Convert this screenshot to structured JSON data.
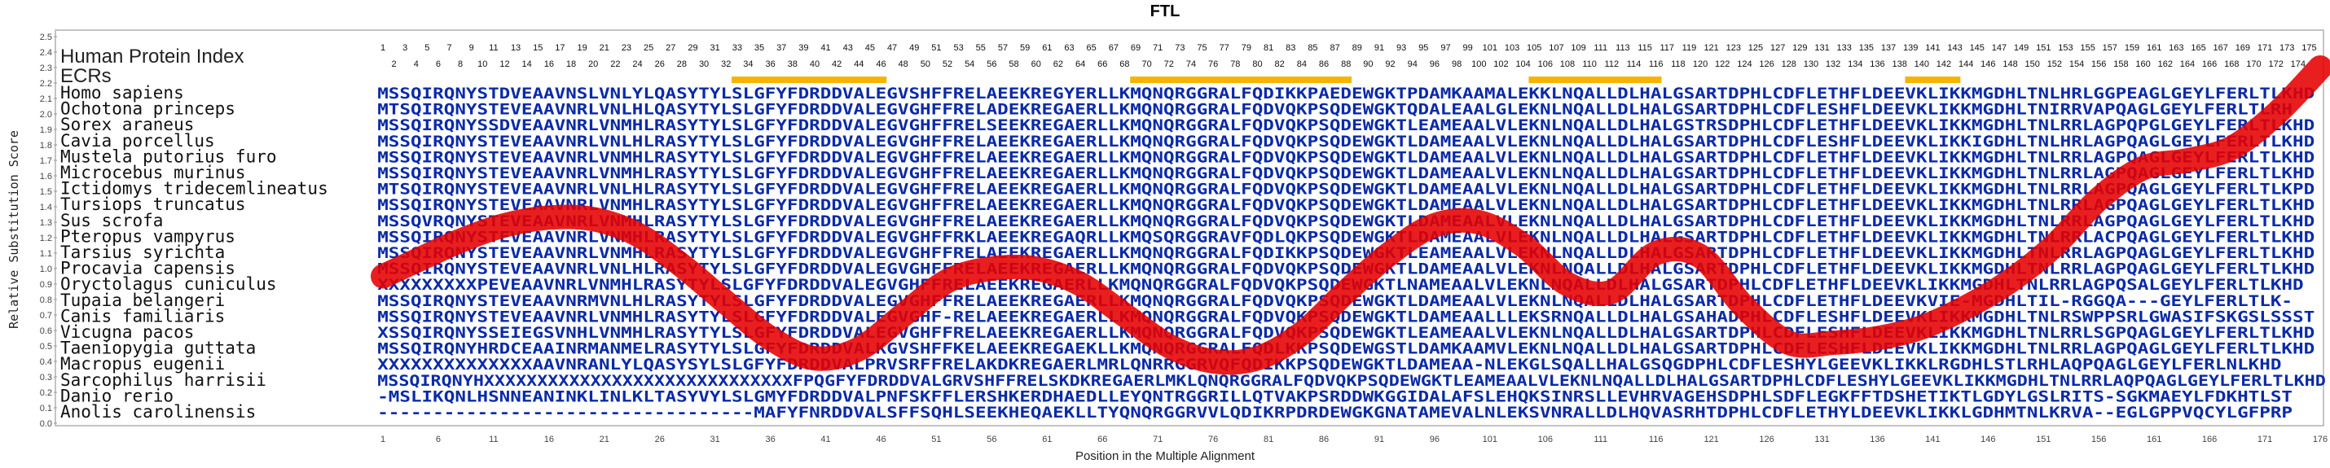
{
  "chart_data": {
    "type": "line",
    "title": "FTL",
    "xlabel": "Position in the Multiple Alignment",
    "ylabel": "Relative Substitution Score",
    "xlim": [
      1,
      176
    ],
    "ylim": [
      0.0,
      2.5
    ],
    "yticks": [
      "0.0",
      "0.1",
      "0.2",
      "0.3",
      "0.4",
      "0.5",
      "0.6",
      "0.7",
      "0.8",
      "0.9",
      "1.0",
      "1.1",
      "1.2",
      "1.3",
      "1.4",
      "1.5",
      "1.6",
      "1.7",
      "1.8",
      "1.9",
      "2.0",
      "2.1",
      "2.2",
      "2.3",
      "2.4",
      "2.5"
    ],
    "xticks": [
      1,
      6,
      11,
      16,
      21,
      26,
      31,
      36,
      41,
      46,
      51,
      56,
      61,
      66,
      71,
      76,
      81,
      86,
      91,
      96,
      101,
      106,
      111,
      116,
      121,
      126,
      131,
      136,
      141,
      146,
      151,
      156,
      161,
      166,
      171,
      176
    ],
    "human_protein_index_label": "Human Protein Index",
    "ecrs_label": "ECRs",
    "index_top": [
      1,
      3,
      5,
      7,
      9,
      11,
      13,
      15,
      17,
      19,
      21,
      23,
      25,
      27,
      29,
      31,
      33,
      35,
      37,
      39,
      41,
      43,
      45,
      47,
      49,
      51,
      53,
      55,
      57,
      59,
      61,
      63,
      65,
      67,
      69,
      71,
      73,
      75,
      77,
      79,
      81,
      83,
      85,
      87,
      89,
      91,
      93,
      95,
      97,
      99,
      101,
      103,
      105,
      107,
      109,
      111,
      113,
      115,
      117,
      119,
      121,
      123,
      125,
      127,
      129,
      131,
      133,
      135,
      137,
      139,
      141,
      143,
      145,
      147,
      149,
      151,
      153,
      155,
      157,
      159,
      161,
      163,
      165,
      167,
      169,
      171,
      173,
      175
    ],
    "index_bottom": [
      2,
      4,
      6,
      8,
      10,
      12,
      14,
      16,
      18,
      20,
      22,
      24,
      26,
      28,
      30,
      32,
      34,
      36,
      38,
      40,
      42,
      44,
      46,
      48,
      50,
      52,
      54,
      56,
      58,
      60,
      62,
      64,
      66,
      68,
      70,
      72,
      74,
      76,
      78,
      80,
      82,
      84,
      86,
      88,
      90,
      92,
      94,
      96,
      98,
      100,
      102,
      104,
      106,
      108,
      110,
      112,
      114,
      116,
      118,
      120,
      122,
      124,
      126,
      128,
      130,
      132,
      134,
      136,
      138,
      140,
      142,
      144,
      146,
      148,
      150,
      152,
      154,
      156,
      158,
      160,
      162,
      164,
      166,
      168,
      170,
      172,
      174
    ],
    "ecr_ranges": [
      [
        33,
        46
      ],
      [
        69,
        88
      ],
      [
        105,
        116
      ],
      [
        139,
        143
      ]
    ],
    "ecr_color": "#f6b400",
    "series": [
      {
        "x": [
          1,
          4,
          8,
          12,
          16,
          20,
          24,
          28,
          32,
          36,
          40,
          44,
          48,
          52,
          56,
          60,
          64,
          68,
          72,
          76,
          80,
          84,
          88,
          92,
          96,
          100,
          104,
          108,
          112,
          116,
          120,
          124,
          128,
          132,
          136,
          140,
          144,
          148,
          152,
          156,
          160,
          164,
          168,
          172,
          176
        ],
        "values": [
          0.95,
          1.05,
          1.18,
          1.28,
          1.33,
          1.32,
          1.22,
          1.02,
          0.78,
          0.55,
          0.42,
          0.48,
          0.7,
          0.92,
          1.0,
          1.0,
          0.9,
          0.7,
          0.5,
          0.4,
          0.42,
          0.58,
          0.85,
          1.1,
          1.28,
          1.3,
          1.15,
          0.9,
          0.85,
          1.1,
          1.08,
          0.75,
          0.52,
          0.52,
          0.55,
          0.62,
          0.75,
          0.92,
          1.15,
          1.45,
          1.65,
          1.7,
          1.78,
          2.0,
          2.3
        ],
        "color": "#e60000"
      }
    ],
    "species": [
      "Homo sapiens",
      "Ochotona princeps",
      "Sorex araneus",
      "Cavia porcellus",
      "Mustela putorius furo",
      "Microcebus murinus",
      "Ictidomys tridecemlineatus",
      "Tursiops truncatus",
      "Sus scrofa",
      "Pteropus vampyrus",
      "Tarsius syrichta",
      "Procavia capensis",
      "Oryctolagus cuniculus",
      "Tupaia belangeri",
      "Canis familiaris",
      "Vicugna pacos",
      "Taeniopygia guttata",
      "Macropus eugenii",
      "Sarcophilus harrisii",
      "Danio rerio",
      "Anolis carolinensis"
    ],
    "sequences": [
      "MSSQIRQNYSTDVEAAVNSLVNLYLQASYTYLSLGFYFDRDDVALEGVSHFFRELAEEKREGYERLLKMQNQRGGRALFQDIKKPAEDEWGKTPDAMKAAMALEKKLNQALLDLHALGSARTDPHLCDFLETHFLDEEVKLIKKMGDHLTNLHRLGGPEAGLGEYLFERLTLKHD",
      "MTSQIRQNYSTEVEAAVNRLVNLHLQASYTYLSLGFYFDRDDVALEGVGHFFRELADEKREGAERLLKMQNQRGGRALFQDVQKPSQDEWGKTQDALEAALGLEKNLNQALLDLHALGSARTDPHLCDFLESHFLDEEVKLIKKMGDHLTNIRRVAPQAGLGEYLFERLTLRH",
      "MSSQIRQNYSSDVEAAVNRLVNMHLRASYTYLSLGFYFDRDDVALEGVGHFFRELSEEKREGAERLLKMQNQRGGRALFQDVQKPSQDEWGKTLEAMEAALVLEKNLNQALLDLHALGSTRSDPHLCDFLETHFLDEEVKLIKKMGDHLTNLRRLAGPQPGLGEYLFERLTLKHD",
      "MSSQIRQNYSTEVEAAVNRLVNLHLRASYTYLSLGFYFDRDDVALEGVGHFFRELAEEKREGAERLLKMQNQRGGRALFQDVQKPSQDEWGKTLDAMEAALVLEKNLNQALLDLHALGSARTDPHLCDFLESHFLDEEVKLIKKIGDHLTNLHRLAGPQAGLGEYLFERLTLKHD",
      "MSSQIRQNYSTEVEAAVNRLVNMHLRASYTYLSLGFYFDRDDVALEGVGHFFRELAEEKREGAERLLKMQNQRGGRALFQDVQKPSQDEWGKTLDAMEAALVLEKNLNQALLDLHALGSARTDPHLCDFLETHFLDEEVKLIKKMGDHLTNLRRLAGPQAGLGEYLFERLTLKHD",
      "MSSQIRQNYSTEVEAAVNRLVNMHLRASYTYLSLGFYFDRDDVALEGVGHFFRELAEEKREGAERLLKMQNQRGGRALFQDVQKPSQDEWGKTLDAMEAALVLEKNLNQALLDLHALGSARTDPHLCDFLETHFLDEEVKLIKKMGDHLTNLRRLAGPQAGLGEYLFERLTLKHD",
      "MTSQIRQNYSTEVEAAVNRLVNLHLRASYTYLSLGFYFDRDDVALEGVGHFFRELAEEKREGAERLLKMQNQRGGRALFQDVQKPSQDEWGKTLDAMEAALVLEKNLNQALLDLHALGSARTDPHLCDFLETHFLDEEVKLIKKMGDHLTNLRRLAGPQAGLGEYLFERLTLKPD",
      "MSSQIRQNYSTEVEAAVNRLVNMHLRASYTYLSLGFYFDRDDVALEGVGHFFRELAEEKREGAERLLKMQNQRGGRALFQDVQKPSQDEWGKTLDAMEAALVLEKNLNQALLDLHALGSARTDPHLCDFLETHFLDEEVKLIKKMGDHLTNLRRLAGPQAGLGEYLFERLTLKHD",
      "MSSQVRQNYSTEVEAAVNRLVNMHLRASYTYLSLGFYFDRDDVALEGVGHFFRELAEEKREGAERLLKMQNQRGGRALFQDVQKPSQDEWGKTLDAMEAALVLEKNLNQALLDLHALGSARTDPHLCDFLETHFLDEEVKLIKKMGDHLTNLRRLAGPQAGLGEYLFERLTLKHD",
      "MSSQIRQNYSTEVEAAVNRLVNMHLRASYTYLSLGFYFDRDDVALEGVGHFFRKLAEEKREGAQRLLKMQSQRGGRAVFQDLQKPSQDEWGKTLDAMEAALVLEKNLNQALLDLHALGSARTDPHLCDFLETHFLDEEVKLIKKMGDHLTNLRRLACPQAGLGEYLFERLTLKHD",
      "MSSQIRQNYSTEVEAAVNRLVNMHLRASYTYLSLGFYFDRDDVALEGVGHFFRELAEEKREGAERLLKMQNQRGGRALFQDIKKPSQDEWGKTLEAMEAALVLEKNLNQALLDLHALGSARTDPHLCDFLETHFLDEEVKLIKKMGDHLTNLRRLAGPQAGLGEYLFERLTLKHD",
      "MSSQIRQNYSTEVEAAVNRLVNLHLRASYTYLSLGFYFDRDDVALEGVGHFFRELAEEKREGAERLLKMQNQRGGRALFQDVQKPSQDEWGKTLDAMEAALVLEKNLNQALLDLHALGSARTDPHLCDFLETHFLDEEVKLIKKMGDHLTNLRRLAGPQAGLGEYLFERLTLKHD",
      "XXXXXXXXXPEVEAAVNRLVNMHLRASYTYLSLGFYFDRDDVALEGVGHFFRELAEEKREGAERLLKMQNQRGGRALFQDVQKPSQDEWGKTLNAMEAALVLEKNLNQALLDLHALGSARTDPHLCDFLETHFLDEEVKLIKKMGDHLTNLRRLAGPQSALGEYLFERLTLKHD",
      "MSSQIRQNYSTEVEAAVNRMVNLHLRASYTYLSLGFYFDRDDVALEGVGHFFRELAEEKREGAERLLKMQNQRGGRALFQDVQKPSQDEWGKTLDAMEAALVLEKNLNQALLDLHALGSARTDPHLCDFLETHFLDEEVKVIE-MGDHLTIL-RGGQA---GEYLFERLTLK-",
      "MSSQIRQNYSTEVEAAVNRLVNMHLRASYTYLSLGFYFDRDDVALEGVGHF-RELAEEKREGAERLLKMQNQRGGRALFQDVQKPSQDEWGKTLDAMEAALLLEKSRNQALLDLHALGSAHADPHLCDFLESHFLDEEVKLIKKMGDHLTNLRSWPPSRLGWASIFSKGSLSSST",
      "XSSQIRQNYSSEIEGSVNHLVNMHLRASYTYLSLGFYFDRDDVALEGVGHFFRELAEEKREGAERLLKMQNQRGGRALFQDVQKPSQDEWGKTLEAMEAALVLEKNLNQALLDLHALGSARTDPHLCDFLESHFLDEEVKLIKKMGDHLTNLRRLSGPQAGLGEYLFERLTLKHD",
      "MSSQIRQNYHRDCEAAINRMANMELRASYTYLSLGFYFDRDDVALKGVSHFFKELAEEKREGAEKLLKMQNQRGGRALFQDLKKPSQDEWGSTLDAMKAAMVLEKNLNQALLDLHALGSARTDPHLCDFLESHFLDEEVKLIKKMGDHLTNLRRLAGPQAGLGEYLFERLTLKHD",
      "XXXXXXXXXXXXXXAAVNRANLYLQASYSYLSLGFYFDRDDVALPRVSRFFRELAKDKREGAERLMRLQNRRGGRVQFQDIKKPSQDEWGKTLDAMEAA-NLEKGLSQALLHALGSQGDPHLCDFLESHYLGEEVKLIKKLRGDHLSTLRHLAQPQAGLGEYLFERLNLKHD",
      "MSSQIRQNYHXXXXXXXXXXXXXXXXXXXXXXXXXXXXXFPQGFYFDRDDVALGRVSHFFRELSKDKREGAERLMKLQNQRGGRALFQDVQKPSQDEWGKTLEAMEAALVLEKNLNQALLDLHALGSARTDPHLCDFLESHYLGEEVKLIKKMGDHLTNLRRLAQPQAGLGEYLFERLTLKHD",
      "-MSLIKQNLHSNNEANINKLINLKLTASYVYLSLGMYFDRDDVALPNFSKFFLERSHKERDHAEDLLEYQNTRGGRILLQTVAKPSRDDWKGGIDALAFSLEHQKSINRSLLEVHRVAGEHSDPHLSDFLEGKFFTDSHETIKTLGDYLGSLRITS-SGKMAEYLFDKHTLST",
      "----------------------------------MAFYFNRDDVALSFFSQHLSEEKHEQAEKLLTYQNQRGGRVVLQDIKRPDRDEWGKGNATAMEVALNLEKSVNRALLDLHQVASRHTDPHLCDFLETHYLDEEVKLIKKLGDHMTNLKRVA--EGLGPPVQCYLGFPRP"
    ],
    "colors": {
      "sequence_text": "#0a2aa8",
      "conserved_muted": "#7f8fd0",
      "accent_green": "#3a8a3a",
      "curve": "#e60000",
      "ecr": "#f6b400",
      "grid": "#cfcfcf"
    }
  }
}
